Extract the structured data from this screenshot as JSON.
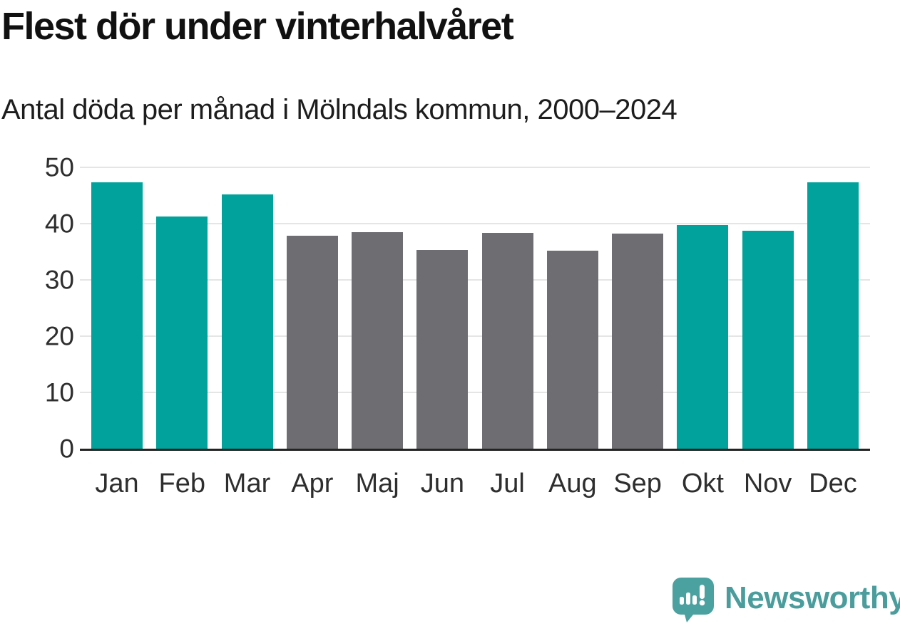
{
  "header": {
    "title": "Flest dör under vinterhalvåret",
    "subtitle": "Antal döda per månad i Mölndals kommun, 2000–2024"
  },
  "chart_data": {
    "type": "bar",
    "title": "Flest dör under vinterhalvåret",
    "subtitle": "Antal döda per månad i Mölndals kommun, 2000–2024",
    "categories": [
      "Jan",
      "Feb",
      "Mar",
      "Apr",
      "Maj",
      "Jun",
      "Jul",
      "Aug",
      "Sep",
      "Okt",
      "Nov",
      "Dec"
    ],
    "values": [
      47.3,
      41.3,
      45.2,
      37.9,
      38.5,
      35.3,
      38.3,
      35.2,
      38.2,
      39.7,
      38.7,
      47.3
    ],
    "bar_colors": [
      "winter",
      "winter",
      "winter",
      "summer",
      "summer",
      "summer",
      "summer",
      "summer",
      "summer",
      "winter",
      "winter",
      "winter"
    ],
    "xlabel": "",
    "ylabel": "",
    "ylim": [
      0,
      50
    ],
    "yticks": [
      0,
      10,
      20,
      30,
      40,
      50
    ],
    "grid": true,
    "legend_position": "none",
    "colors": {
      "winter": "#00a29b",
      "summer": "#6e6e72",
      "axis_line": "#232323",
      "gridline": "#e5e5e5",
      "tick_text": "#2e2e2e"
    }
  },
  "footer": {
    "brand": "Newsworthy",
    "brand_color": "#4a9d9c",
    "logo_icon": "newsworthy-speech-bubble-bar-chart-icon",
    "logo_color": "#4ba1a0"
  }
}
